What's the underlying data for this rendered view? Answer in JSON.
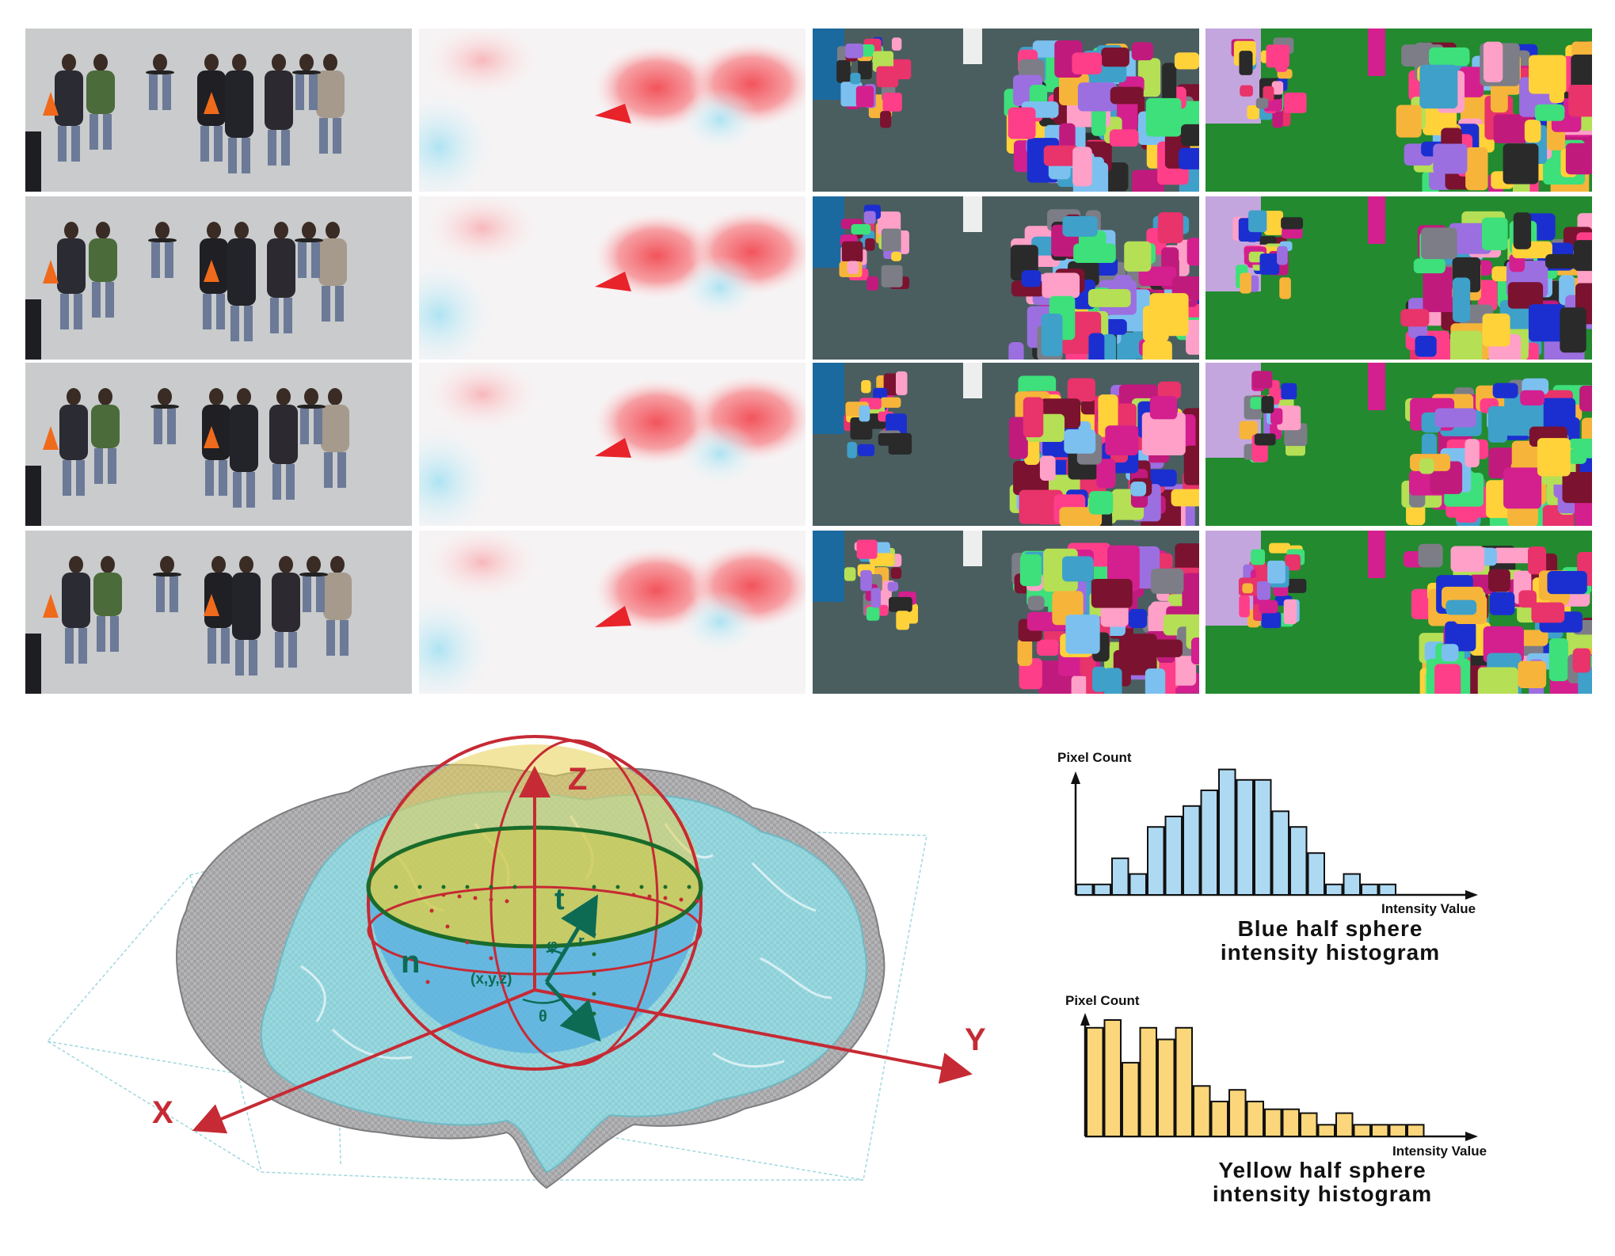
{
  "grid": {
    "rows": 4,
    "columns": [
      "photo",
      "optical-flow",
      "segmentation-dark",
      "segmentation-green"
    ],
    "colors": {
      "photo_bg": "#c9cbcc",
      "flow_bg": "#f6f3f4",
      "seg_dark_bg": "#4a5e60",
      "seg_green_bg": "#238a2f",
      "seg_palette": [
        "#ff3e8a",
        "#3de07a",
        "#ffd23a",
        "#f6b53a",
        "#1b2fd0",
        "#c11a7d",
        "#7cc0f0",
        "#7a1230",
        "#9b6fe0",
        "#ffa0c8",
        "#3fa0c9",
        "#e8336b",
        "#7c7d86",
        "#b5df55",
        "#d41f8f",
        "#2a2a2a"
      ]
    }
  },
  "diagram": {
    "axes": {
      "z": "Z",
      "y": "Y",
      "x": "X"
    },
    "labels": {
      "tangent": "t",
      "normal": "n",
      "point": "(x,y,z)",
      "phi": "φ",
      "r": "r",
      "theta": "θ"
    },
    "colors": {
      "axis": "#c62a34",
      "brain": "#a8a8ab",
      "tissue": "#8fd3dc",
      "yellow": "#e7cf52",
      "blue": "#55aee0",
      "arrow": "#0d6b54"
    }
  },
  "histograms": [
    {
      "id": "blue",
      "y_label": "Pixel Count",
      "x_label": "Intensity Value",
      "caption_line1": "Blue half sphere",
      "caption_line2": "intensity histogram",
      "fill": "#aed9f2",
      "values": [
        1,
        1,
        3.5,
        2,
        6.5,
        7.5,
        8.5,
        10,
        12,
        11,
        11,
        8,
        6.5,
        4,
        1,
        2,
        1,
        1
      ]
    },
    {
      "id": "yellow",
      "y_label": "Pixel Count",
      "x_label": "Intensity Value",
      "caption_line1": "Yellow half sphere",
      "caption_line2": "intensity histogram",
      "fill": "#fcd67a",
      "values": [
        14,
        15,
        9.5,
        14,
        12.5,
        14,
        6.5,
        4.5,
        6,
        4.5,
        3.5,
        3.5,
        3,
        1.5,
        3,
        1.5,
        1.5,
        1.5,
        1.5
      ]
    }
  ]
}
